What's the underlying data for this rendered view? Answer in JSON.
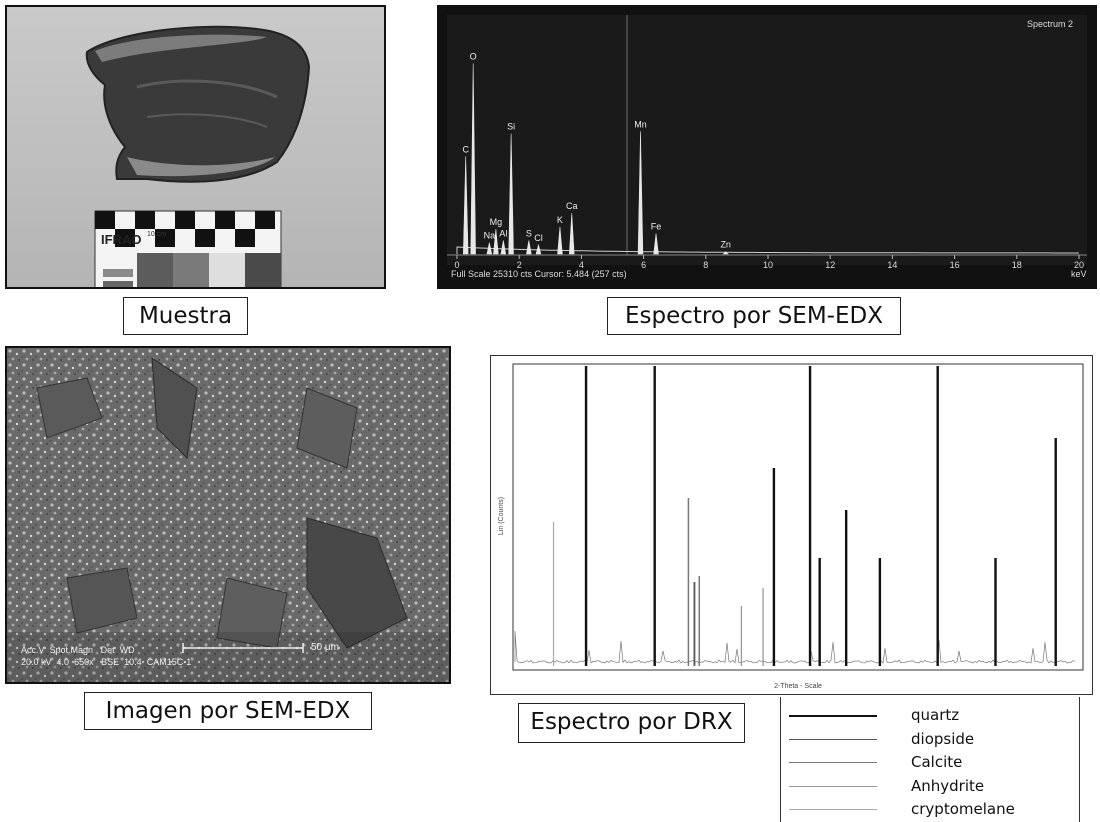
{
  "captions": {
    "muestra": "Muestra",
    "edx_spectrum": "Espectro por SEM-EDX",
    "sem_image": "Imagen por SEM-EDX",
    "drx_spectrum": "Espectro por DRX"
  },
  "photo": {
    "scale_brand": "IFRAO",
    "scale_unit": "10 cm"
  },
  "edx": {
    "spectrum_label": "Spectrum 2",
    "footer": "Full Scale 25310 cts Cursor: 5.484  (257 cts)",
    "unit": "keV",
    "x_ticks": [
      "0",
      "2",
      "4",
      "6",
      "8",
      "10",
      "12",
      "14",
      "16",
      "18",
      "20"
    ],
    "peaks": [
      {
        "label": "C",
        "energy": 0.28,
        "height": 0.43
      },
      {
        "label": "O",
        "energy": 0.52,
        "height": 0.84
      },
      {
        "label": "Mg",
        "energy": 1.25,
        "height": 0.11
      },
      {
        "label": "Na",
        "energy": 1.04,
        "height": 0.05
      },
      {
        "label": "Al",
        "energy": 1.49,
        "height": 0.06
      },
      {
        "label": "Si",
        "energy": 1.74,
        "height": 0.53
      },
      {
        "label": "S",
        "energy": 2.31,
        "height": 0.06
      },
      {
        "label": "Cl",
        "energy": 2.62,
        "height": 0.04
      },
      {
        "label": "K",
        "energy": 3.31,
        "height": 0.12
      },
      {
        "label": "Ca",
        "energy": 3.69,
        "height": 0.18
      },
      {
        "label": "Mn",
        "energy": 5.9,
        "height": 0.54
      },
      {
        "label": "Fe",
        "energy": 6.4,
        "height": 0.09
      },
      {
        "label": "Zn",
        "energy": 8.64,
        "height": 0.01
      }
    ]
  },
  "sem": {
    "acc_v_label": "Acc.V",
    "spot_label": "Spot Magn",
    "det_label": "Det",
    "wd_label": "WD",
    "acc_v": "20.0 kV",
    "spot": "4.0",
    "magn": "650x",
    "det": "BSE",
    "wd": "10.4",
    "sample": "CAM15C-1",
    "scalebar": "50 µm"
  },
  "drx": {
    "ylabel": "Lin (Counts)",
    "xlabel": "2-Theta - Scale",
    "peaks": [
      {
        "two_theta": 20.9,
        "height": 1.0,
        "series": "quartz"
      },
      {
        "two_theta": 26.6,
        "height": 1.0,
        "series": "quartz"
      },
      {
        "two_theta": 29.4,
        "height": 0.56,
        "series": "Calcite"
      },
      {
        "two_theta": 29.9,
        "height": 0.28,
        "series": "diopside"
      },
      {
        "two_theta": 30.3,
        "height": 0.3,
        "series": "Calcite"
      },
      {
        "two_theta": 35.6,
        "height": 0.26,
        "series": "Anhydrite"
      },
      {
        "two_theta": 36.5,
        "height": 0.66,
        "series": "quartz"
      },
      {
        "two_theta": 39.5,
        "height": 1.0,
        "series": "quartz"
      },
      {
        "two_theta": 40.3,
        "height": 0.36,
        "series": "quartz"
      },
      {
        "two_theta": 42.5,
        "height": 0.52,
        "series": "quartz"
      },
      {
        "two_theta": 45.3,
        "height": 0.36,
        "series": "quartz"
      },
      {
        "two_theta": 50.1,
        "height": 1.0,
        "series": "quartz"
      },
      {
        "two_theta": 54.9,
        "height": 0.36,
        "series": "quartz"
      },
      {
        "two_theta": 59.9,
        "height": 0.76,
        "series": "quartz"
      },
      {
        "two_theta": 18.2,
        "height": 0.48,
        "series": "cryptomelane"
      },
      {
        "two_theta": 33.8,
        "height": 0.2,
        "series": "Anhydrite"
      }
    ],
    "legend": [
      {
        "name": "quartz",
        "color": "#111111",
        "width": 2.4
      },
      {
        "name": "diopside",
        "color": "#555555",
        "width": 1.8
      },
      {
        "name": "Calcite",
        "color": "#777777",
        "width": 1.5
      },
      {
        "name": "Anhydrite",
        "color": "#999999",
        "width": 1.3
      },
      {
        "name": "cryptomelane",
        "color": "#aaaaaa",
        "width": 1.2
      }
    ]
  }
}
